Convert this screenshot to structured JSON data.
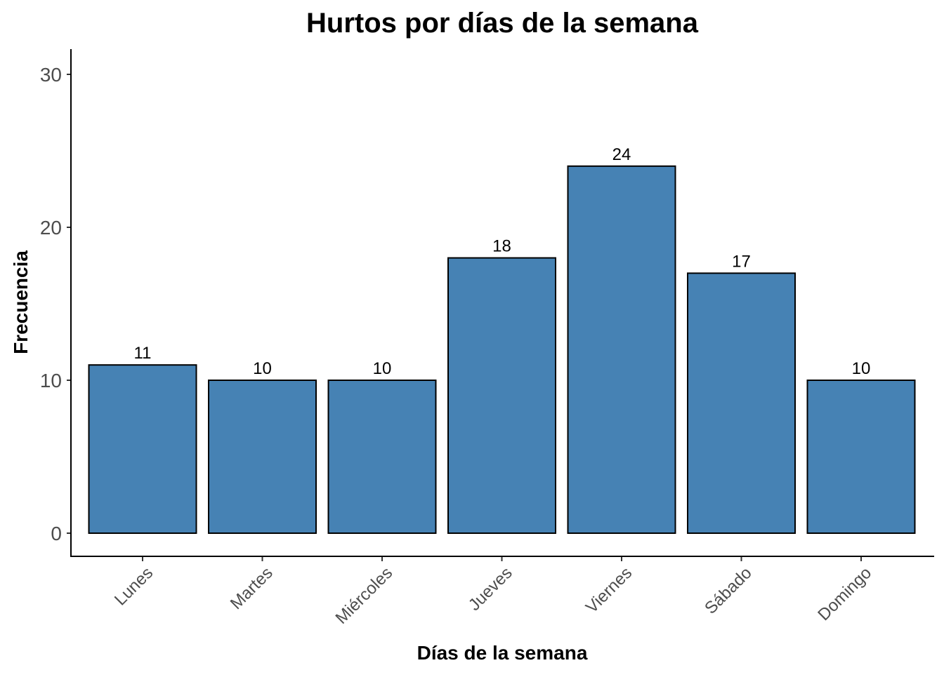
{
  "chart_data": {
    "type": "bar",
    "title": "Hurtos por días de la semana",
    "xlabel": "Días de la semana",
    "ylabel": "Frecuencia",
    "categories": [
      "Lunes",
      "Martes",
      "Miércoles",
      "Jueves",
      "Viernes",
      "Sábado",
      "Domingo"
    ],
    "values": [
      11,
      10,
      10,
      18,
      24,
      17,
      10
    ],
    "data_labels": [
      "11",
      "10",
      "10",
      "18",
      "24",
      "17",
      "10"
    ],
    "yticks": [
      0,
      10,
      20,
      30
    ],
    "ytick_labels": [
      "0",
      "10",
      "20",
      "30"
    ],
    "ylim": [
      0,
      30
    ],
    "grid": false,
    "legend": "none",
    "bar_color": "#4682B4",
    "bar_outline_color": "#000000"
  }
}
